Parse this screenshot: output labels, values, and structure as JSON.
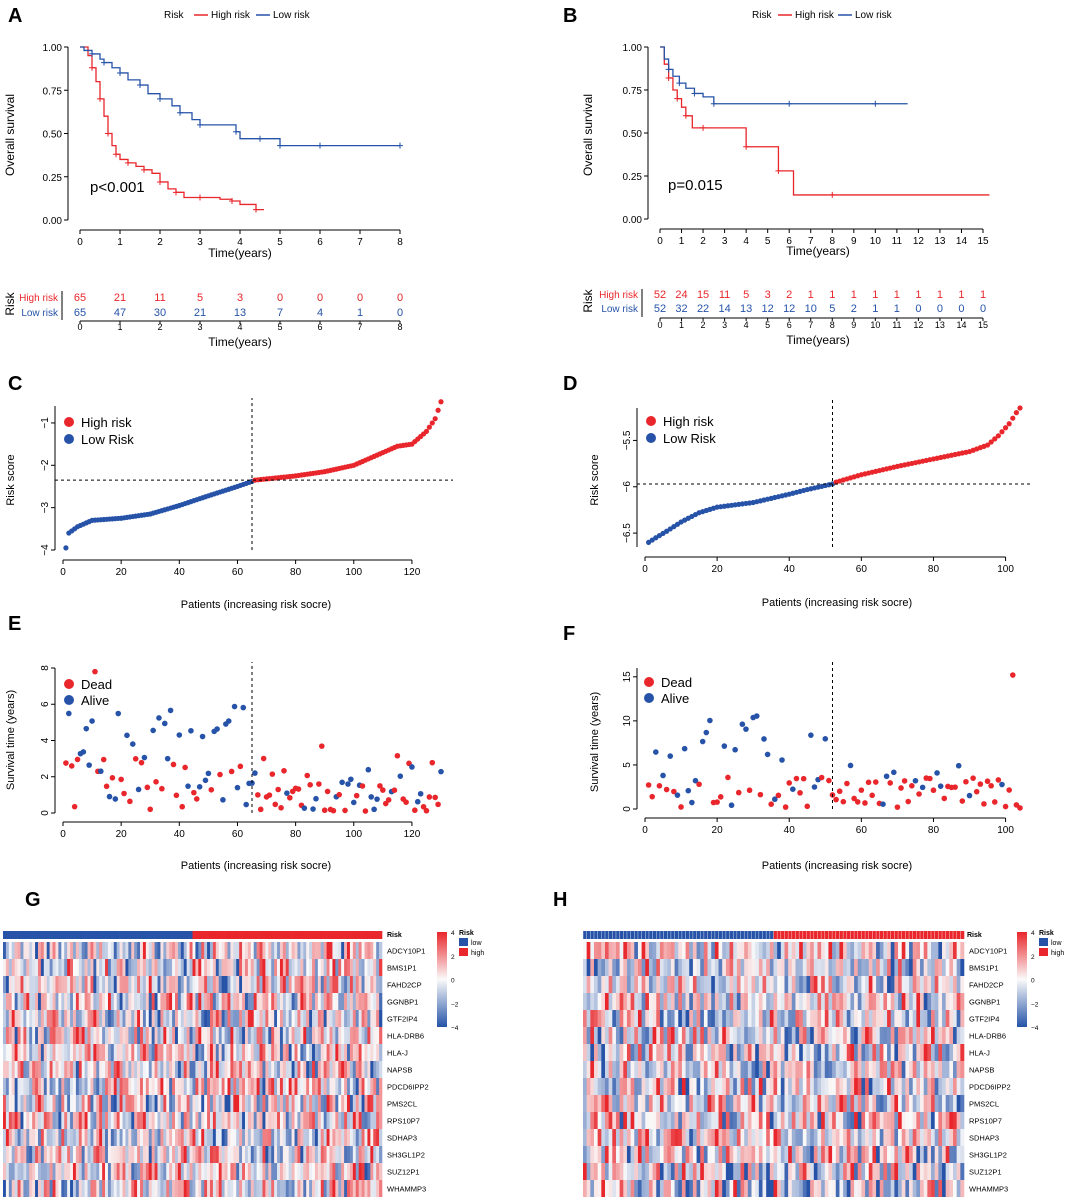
{
  "colors": {
    "high": "#e8262b",
    "low": "#2653a8",
    "axis": "#000000"
  },
  "panels": {
    "A": {
      "letter": "A",
      "legend_title": "Risk",
      "legend_high": "High risk",
      "legend_low": "Low risk",
      "ylabel": "Overall survival",
      "xlabel": "Time(years)",
      "pvalue": "p<0.001",
      "risk_label": "Risk",
      "risk_xlabel": "Time(years)"
    },
    "B": {
      "letter": "B",
      "legend_title": "Risk",
      "legend_high": "High risk",
      "legend_low": "Low risk",
      "ylabel": "Overall survival",
      "xlabel": "Time(years)",
      "pvalue": "p=0.015",
      "risk_label": "Risk",
      "risk_xlabel": "Time(years)"
    },
    "C": {
      "letter": "C",
      "legend_high": "High risk",
      "legend_low": "Low Risk",
      "ylabel": "Risk score",
      "xlabel": "Patients (increasing risk socre)"
    },
    "D": {
      "letter": "D",
      "legend_high": "High risk",
      "legend_low": "Low Risk",
      "ylabel": "Risk score",
      "xlabel": "Patients (increasing risk socre)"
    },
    "E": {
      "letter": "E",
      "legend_dead": "Dead",
      "legend_alive": "Alive",
      "ylabel": "Survival time (years)",
      "xlabel": "Patients (increasing risk socre)"
    },
    "F": {
      "letter": "F",
      "legend_dead": "Dead",
      "legend_alive": "Alive",
      "ylabel": "Survival time (years)",
      "xlabel": "Patients (increasing risk socre)"
    },
    "G": {
      "letter": "G",
      "annot_label": "Risk",
      "legend_title": "Risk",
      "legend_low": "low",
      "legend_high": "high"
    },
    "H": {
      "letter": "H",
      "annot_label": "Risk",
      "legend_title": "Risk",
      "legend_low": "low",
      "legend_high": "high"
    }
  },
  "chart_data": [
    {
      "id": "A",
      "type": "line",
      "title": "",
      "xlabel": "Time(years)",
      "ylabel": "Overall survival",
      "xlim": [
        0,
        8
      ],
      "ylim": [
        0,
        1
      ],
      "xticks": [
        0,
        1,
        2,
        3,
        4,
        5,
        6,
        7,
        8
      ],
      "yticks": [
        "0.00",
        "0.25",
        "0.50",
        "0.75",
        "1.00"
      ],
      "series": [
        {
          "name": "High risk",
          "color": "#e8262b",
          "x": [
            0,
            0.2,
            0.3,
            0.4,
            0.5,
            0.6,
            0.7,
            0.8,
            0.9,
            1.0,
            1.2,
            1.4,
            1.6,
            1.8,
            2.0,
            2.2,
            2.4,
            2.6,
            3.0,
            3.5,
            3.8,
            4.0,
            4.4,
            4.6
          ],
          "y": [
            1,
            0.95,
            0.88,
            0.8,
            0.7,
            0.6,
            0.5,
            0.43,
            0.38,
            0.35,
            0.33,
            0.31,
            0.29,
            0.27,
            0.22,
            0.18,
            0.16,
            0.13,
            0.13,
            0.12,
            0.11,
            0.09,
            0.06,
            0.06
          ]
        },
        {
          "name": "Low risk",
          "color": "#2653a8",
          "x": [
            0,
            0.1,
            0.3,
            0.5,
            0.6,
            0.8,
            1.0,
            1.2,
            1.5,
            1.7,
            2.0,
            2.3,
            2.5,
            2.8,
            3.0,
            3.5,
            3.9,
            4.0,
            4.5,
            4.8,
            5.0,
            5.5,
            6.0,
            7.0,
            8.0
          ],
          "y": [
            1,
            0.98,
            0.96,
            0.93,
            0.91,
            0.88,
            0.85,
            0.81,
            0.78,
            0.73,
            0.7,
            0.66,
            0.62,
            0.58,
            0.55,
            0.55,
            0.51,
            0.47,
            0.47,
            0.47,
            0.43,
            0.43,
            0.43,
            0.43,
            0.43
          ]
        }
      ],
      "annotations": [
        "p<0.001"
      ],
      "risk_table": {
        "times": [
          0,
          1,
          2,
          3,
          4,
          5,
          6,
          7,
          8
        ],
        "rows": [
          {
            "name": "High risk",
            "values": [
              65,
              21,
              11,
              5,
              3,
              0,
              0,
              0,
              0
            ]
          },
          {
            "name": "Low risk",
            "values": [
              65,
              47,
              30,
              21,
              13,
              7,
              4,
              1,
              0
            ]
          }
        ]
      }
    },
    {
      "id": "B",
      "type": "line",
      "title": "",
      "xlabel": "Time(years)",
      "ylabel": "Overall survival",
      "xlim": [
        0,
        15
      ],
      "ylim": [
        0,
        1
      ],
      "xticks": [
        0,
        1,
        2,
        3,
        4,
        5,
        6,
        7,
        8,
        9,
        10,
        11,
        12,
        13,
        14,
        15
      ],
      "yticks": [
        "0.00",
        "0.25",
        "0.50",
        "0.75",
        "1.00"
      ],
      "series": [
        {
          "name": "High risk",
          "color": "#e8262b",
          "x": [
            0,
            0.2,
            0.4,
            0.6,
            0.8,
            1.0,
            1.2,
            1.5,
            2.0,
            3.0,
            4.0,
            5.0,
            5.5,
            6.2,
            8.0,
            15.3
          ],
          "y": [
            1,
            0.9,
            0.82,
            0.75,
            0.7,
            0.65,
            0.6,
            0.53,
            0.53,
            0.53,
            0.42,
            0.42,
            0.28,
            0.14,
            0.14,
            0.14
          ]
        },
        {
          "name": "Low risk",
          "color": "#2653a8",
          "x": [
            0,
            0.2,
            0.4,
            0.6,
            0.9,
            1.2,
            1.6,
            2.0,
            2.5,
            4.0,
            6.0,
            8.0,
            10.0,
            11.5
          ],
          "y": [
            1,
            0.93,
            0.87,
            0.83,
            0.79,
            0.76,
            0.73,
            0.71,
            0.67,
            0.67,
            0.67,
            0.67,
            0.67,
            0.67
          ]
        }
      ],
      "annotations": [
        "p=0.015"
      ],
      "risk_table": {
        "times": [
          0,
          1,
          2,
          3,
          4,
          5,
          6,
          7,
          8,
          9,
          10,
          11,
          12,
          13,
          14,
          15
        ],
        "rows": [
          {
            "name": "High risk",
            "values": [
              52,
              24,
              15,
              11,
              5,
              3,
              2,
              1,
              1,
              1,
              1,
              1,
              1,
              1,
              1,
              1
            ]
          },
          {
            "name": "Low risk",
            "values": [
              52,
              32,
              22,
              14,
              13,
              12,
              12,
              10,
              5,
              2,
              1,
              1,
              0,
              0,
              0,
              0
            ]
          }
        ]
      }
    },
    {
      "id": "C",
      "type": "scatter",
      "xlabel": "Patients (increasing risk socre)",
      "ylabel": "Risk score",
      "xlim": [
        0,
        130
      ],
      "ylim": [
        -4,
        -0.6
      ],
      "xticks": [
        0,
        20,
        40,
        60,
        80,
        100,
        120
      ],
      "yticks": [
        -4,
        -3,
        -2,
        -1
      ],
      "cutoff_x": 65,
      "cutoff_y": -2.35,
      "n": 130,
      "curve": {
        "x": [
          1,
          2,
          5,
          10,
          20,
          30,
          40,
          50,
          60,
          65,
          66,
          80,
          90,
          100,
          110,
          115,
          120,
          125,
          128,
          129,
          130
        ],
        "y": [
          -3.95,
          -3.6,
          -3.45,
          -3.3,
          -3.25,
          -3.15,
          -2.95,
          -2.72,
          -2.5,
          -2.38,
          -2.35,
          -2.25,
          -2.15,
          -2.0,
          -1.7,
          -1.55,
          -1.5,
          -1.2,
          -0.9,
          -0.7,
          -0.5
        ]
      }
    },
    {
      "id": "D",
      "type": "scatter",
      "xlabel": "Patients (increasing risk socre)",
      "ylabel": "Risk score",
      "xlim": [
        0,
        104
      ],
      "ylim": [
        -6.65,
        -5.15
      ],
      "xticks": [
        0,
        20,
        40,
        60,
        80,
        100
      ],
      "yticks": [
        -6.5,
        -6.0,
        -5.5
      ],
      "cutoff_x": 52,
      "cutoff_y": -5.97,
      "n": 104,
      "curve": {
        "x": [
          1,
          3,
          6,
          10,
          15,
          20,
          30,
          40,
          45,
          52,
          53,
          60,
          70,
          80,
          90,
          95,
          98,
          101,
          103,
          104
        ],
        "y": [
          -6.6,
          -6.55,
          -6.48,
          -6.38,
          -6.28,
          -6.22,
          -6.17,
          -6.08,
          -6.03,
          -5.97,
          -5.95,
          -5.87,
          -5.78,
          -5.7,
          -5.62,
          -5.55,
          -5.45,
          -5.32,
          -5.2,
          -5.15
        ]
      }
    },
    {
      "id": "E",
      "type": "scatter",
      "xlabel": "Patients (increasing risk socre)",
      "ylabel": "Survival time (years)",
      "xlim": [
        0,
        130
      ],
      "ylim": [
        0,
        8
      ],
      "xticks": [
        0,
        20,
        40,
        60,
        80,
        100,
        120
      ],
      "yticks": [
        0,
        2,
        4,
        6,
        8
      ],
      "cutoff_x": 65,
      "n": 130,
      "seed": 7
    },
    {
      "id": "F",
      "type": "scatter",
      "xlabel": "Patients (increasing risk socre)",
      "ylabel": "Survival time (years)",
      "xlim": [
        0,
        104
      ],
      "ylim": [
        0,
        16
      ],
      "xticks": [
        0,
        20,
        40,
        60,
        80,
        100
      ],
      "yticks": [
        0,
        5,
        10,
        15
      ],
      "cutoff_x": 52,
      "n": 104,
      "seed": 13
    },
    {
      "id": "G",
      "type": "heatmap",
      "rows": [
        "ADCY10P1",
        "BMS1P1",
        "FAHD2CP",
        "GGNBP1",
        "GTF2IP4",
        "HLA-DRB6",
        "HLA-J",
        "NAPSB",
        "PDCD6IPP2",
        "PMS2CL",
        "RPS10P7",
        "SDHAP3",
        "SH3GL1P2",
        "SUZ12P1",
        "WHAMMP3"
      ],
      "n_cols": 130,
      "low_cols": 65,
      "scale": [
        -4,
        -2,
        0,
        2,
        4
      ],
      "seed": 21
    },
    {
      "id": "H",
      "type": "heatmap",
      "rows": [
        "ADCY10P1",
        "BMS1P1",
        "FAHD2CP",
        "GGNBP1",
        "GTF2IP4",
        "HLA-DRB6",
        "HLA-J",
        "NAPSB",
        "PDCD6IPP2",
        "PMS2CL",
        "RPS10P7",
        "SDHAP3",
        "SH3GL1P2",
        "SUZ12P1",
        "WHAMMP3"
      ],
      "n_cols": 104,
      "low_cols": 52,
      "scale": [
        -4,
        -2,
        0,
        2,
        4
      ],
      "seed": 35
    }
  ]
}
